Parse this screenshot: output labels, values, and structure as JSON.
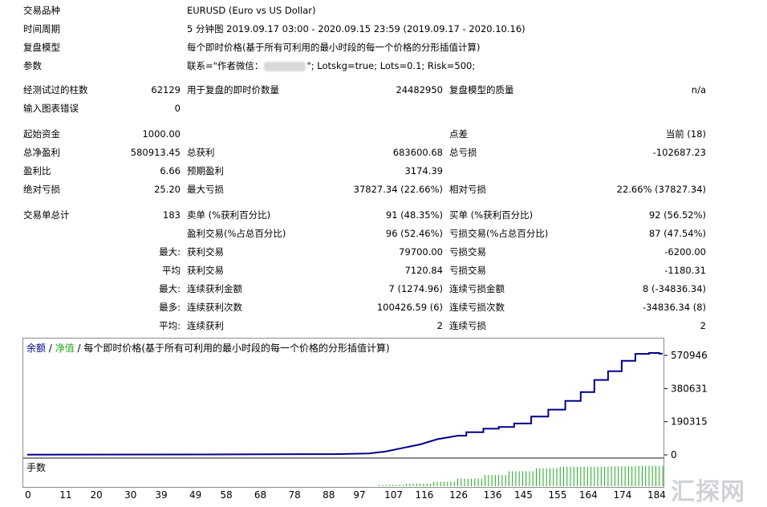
{
  "header": {
    "rows": [
      {
        "label": "交易品种",
        "value": "EURUSD (Euro vs US Dollar)"
      },
      {
        "label": "时间周期",
        "value": "5 分钟图 2019.09.17 03:00 - 2020.09.15 23:59 (2019.09.17 - 2020.10.16)"
      },
      {
        "label": "复盘模型",
        "value": "每个即时价格(基于所有可利用的最小时段的每一个价格的分形插值计算)"
      },
      {
        "label": "参数",
        "value_prefix": "联系=\"作者微信：",
        "value_suffix": "\"; Lotskg=true; Lots=0.1; Risk=500;"
      }
    ]
  },
  "stats": {
    "bars_tested_label": "经测试过的柱数",
    "bars_tested": "62129",
    "ticks_label": "用于复盘的即时价数量",
    "ticks": "24482950",
    "quality_label": "复盘模型的质量",
    "quality": "n/a",
    "errors_label": "输入图表错误",
    "errors": "0",
    "initial_label": "起始资金",
    "initial": "1000.00",
    "spread_label": "点差",
    "spread": "当前 (18)",
    "net_profit_label": "总净盈利",
    "net_profit": "580913.45",
    "gross_profit_label": "总获利",
    "gross_profit": "683600.68",
    "gross_loss_label": "总亏损",
    "gross_loss": "-102687.23",
    "profit_factor_label": "盈利比",
    "profit_factor": "6.66",
    "expected_label": "预期盈利",
    "expected": "3174.39",
    "abs_dd_label": "绝对亏损",
    "abs_dd": "25.20",
    "max_dd_label": "最大亏损",
    "max_dd": "37827.34 (22.66%)",
    "rel_dd_label": "相对亏损",
    "rel_dd": "22.66% (37827.34)",
    "total_trades_label": "交易单总计",
    "total_trades": "183",
    "short_label": "卖单 (%获利百分比)",
    "short": "91 (48.35%)",
    "long_label": "买单 (%获利百分比)",
    "long": "92 (56.52%)",
    "win_label": "盈利交易(%占总百分比)",
    "win": "96 (52.46%)",
    "loss_label": "亏损交易(%占总百分比)",
    "loss": "87 (47.54%)",
    "max_prefix": "最大:",
    "avg_prefix": "平均",
    "max2_prefix": "最大:",
    "most_prefix": "最多:",
    "avg2_prefix": "平均:",
    "largest_win_label": "获利交易",
    "largest_win": "79700.00",
    "largest_loss_label": "亏损交易",
    "largest_loss": "-6200.00",
    "avg_win_label": "获利交易",
    "avg_win": "7120.84",
    "avg_loss_label": "亏损交易",
    "avg_loss": "-1180.31",
    "max_consec_win_amt_label": "连续获利金额",
    "max_consec_win_amt": "7 (1274.96)",
    "max_consec_loss_amt_label": "连续亏损金额",
    "max_consec_loss_amt": "8 (-34836.34)",
    "max_consec_win_cnt_label": "连续获利次数",
    "max_consec_win_cnt": "100426.59 (6)",
    "max_consec_loss_cnt_label": "连续亏损次数",
    "max_consec_loss_cnt": "-34836.34 (8)",
    "avg_consec_win_label": "连续获利",
    "avg_consec_win": "2",
    "avg_consec_loss_label": "连续亏损",
    "avg_consec_loss": "2"
  },
  "chart_data": {
    "type": "line",
    "legend": {
      "balance": "余额",
      "sep1": " / ",
      "equity": "净值",
      "sep2": " / ",
      "model": "每个即时价格(基于所有可利用的最小时段的每一个价格的分形插值计算)"
    },
    "y_ticks": [
      "570946",
      "380631",
      "190315",
      "0"
    ],
    "ylim": [
      0,
      608000
    ],
    "x_ticks": [
      "0",
      "11",
      "20",
      "30",
      "39",
      "49",
      "58",
      "68",
      "78",
      "88",
      "97",
      "107",
      "116",
      "126",
      "136",
      "145",
      "155",
      "164",
      "174",
      "184"
    ],
    "xlim": [
      0,
      186
    ],
    "balance": {
      "x": [
        0,
        50,
        90,
        100,
        105,
        110,
        115,
        120,
        126,
        131,
        136,
        140,
        145,
        150,
        155,
        160,
        164,
        168,
        172,
        176,
        180,
        184,
        186
      ],
      "y": [
        1000,
        2500,
        4000,
        8000,
        20000,
        40000,
        60000,
        90000,
        110000,
        130000,
        150000,
        160000,
        180000,
        220000,
        260000,
        310000,
        360000,
        430000,
        480000,
        540000,
        580000,
        585000,
        581000
      ]
    },
    "volume_label": "手数",
    "volume": {
      "start": 103,
      "end": 186,
      "levels": [
        0.05,
        0.1,
        0.18,
        0.3,
        0.45,
        0.6,
        0.72,
        0.78,
        0.78,
        0.8,
        0.82
      ]
    },
    "colors": {
      "balance": "#00008b",
      "equity": "#1fa81f",
      "volume": "#1fa81f",
      "axis": "#8c8c8c"
    }
  },
  "watermark": "汇探网"
}
